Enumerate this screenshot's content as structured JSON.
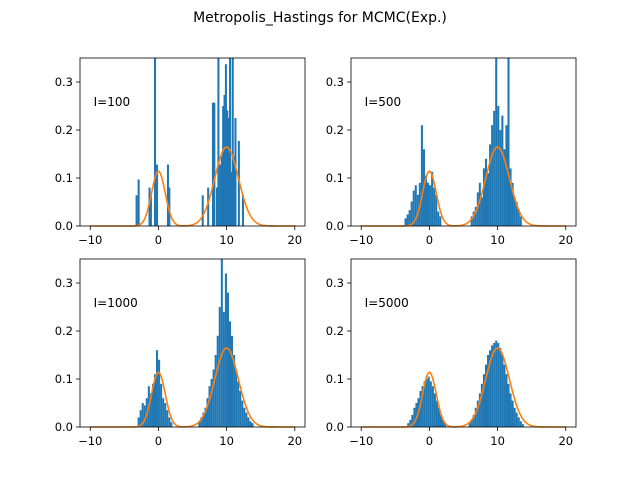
{
  "chart_data": {
    "suptitle": "Metropolis_Hastings for MCMC(Exp.)",
    "colors": {
      "hist": "#1f77b4",
      "pdf": "#ff7f0e"
    },
    "density": {
      "type": "line",
      "formula": "2/7*N(0,1) + 5/7*N(10,3)",
      "components": [
        {
          "weight": 0.2857,
          "mean": 0,
          "variance": 1
        },
        {
          "weight": 0.7143,
          "mean": 10,
          "variance": 3
        }
      ],
      "x_range": [
        -10,
        20
      ]
    },
    "panels": [
      {
        "type": "bar",
        "annotation": "I=100",
        "xlim": [
          -11.5,
          21.5
        ],
        "ylim": [
          0,
          0.35
        ],
        "xticks": [
          "−10",
          "0",
          "10",
          "20"
        ],
        "yticks": [
          "0.0",
          "0.1",
          "0.2",
          "0.3"
        ],
        "bars": [
          {
            "x": -3.2,
            "y": 0.064
          },
          {
            "x": -2.9,
            "y": 0.097
          },
          {
            "x": -1.3,
            "y": 0.08
          },
          {
            "x": -1.1,
            "y": 0.064
          },
          {
            "x": -0.5,
            "y": 0.35
          },
          {
            "x": -0.2,
            "y": 0.128
          },
          {
            "x": 1.4,
            "y": 0.128
          },
          {
            "x": 1.6,
            "y": 0.08
          },
          {
            "x": 6.5,
            "y": 0.064
          },
          {
            "x": 7.3,
            "y": 0.08
          },
          {
            "x": 8.0,
            "y": 0.257
          },
          {
            "x": 8.2,
            "y": 0.257
          },
          {
            "x": 8.6,
            "y": 0.08
          },
          {
            "x": 8.8,
            "y": 0.35
          },
          {
            "x": 9.1,
            "y": 0.128
          },
          {
            "x": 9.3,
            "y": 0.145
          },
          {
            "x": 9.5,
            "y": 0.25
          },
          {
            "x": 9.7,
            "y": 0.273
          },
          {
            "x": 9.9,
            "y": 0.337
          },
          {
            "x": 10.1,
            "y": 0.241
          },
          {
            "x": 10.3,
            "y": 0.225
          },
          {
            "x": 10.5,
            "y": 0.35
          },
          {
            "x": 10.7,
            "y": 0.113
          },
          {
            "x": 10.9,
            "y": 0.35
          },
          {
            "x": 11.1,
            "y": 0.145
          },
          {
            "x": 11.3,
            "y": 0.225
          },
          {
            "x": 11.8,
            "y": 0.177
          },
          {
            "x": 12.4,
            "y": 0.064
          }
        ]
      },
      {
        "type": "bar",
        "annotation": "I=500",
        "xlim": [
          -11.5,
          21.5
        ],
        "ylim": [
          0,
          0.35
        ],
        "xticks": [
          "−10",
          "0",
          "10",
          "20"
        ],
        "yticks": [
          "0.0",
          "0.1",
          "0.2",
          "0.3"
        ],
        "bars": [
          {
            "x": -3.5,
            "y": 0.016
          },
          {
            "x": -3.2,
            "y": 0.024
          },
          {
            "x": -2.9,
            "y": 0.033
          },
          {
            "x": -2.6,
            "y": 0.051
          },
          {
            "x": -2.3,
            "y": 0.074
          },
          {
            "x": -2.0,
            "y": 0.085
          },
          {
            "x": -1.7,
            "y": 0.065
          },
          {
            "x": -1.4,
            "y": 0.09
          },
          {
            "x": -1.1,
            "y": 0.21
          },
          {
            "x": -0.8,
            "y": 0.16
          },
          {
            "x": -0.5,
            "y": 0.105
          },
          {
            "x": -0.2,
            "y": 0.09
          },
          {
            "x": 0.1,
            "y": 0.085
          },
          {
            "x": 0.4,
            "y": 0.113
          },
          {
            "x": 0.7,
            "y": 0.08
          },
          {
            "x": 1.0,
            "y": 0.065
          },
          {
            "x": 1.3,
            "y": 0.03
          },
          {
            "x": 1.6,
            "y": 0.02
          },
          {
            "x": 6.2,
            "y": 0.02
          },
          {
            "x": 6.5,
            "y": 0.03
          },
          {
            "x": 6.8,
            "y": 0.04
          },
          {
            "x": 7.1,
            "y": 0.07
          },
          {
            "x": 7.4,
            "y": 0.09
          },
          {
            "x": 7.7,
            "y": 0.06
          },
          {
            "x": 8.0,
            "y": 0.12
          },
          {
            "x": 8.3,
            "y": 0.14
          },
          {
            "x": 8.6,
            "y": 0.11
          },
          {
            "x": 8.9,
            "y": 0.17
          },
          {
            "x": 9.2,
            "y": 0.21
          },
          {
            "x": 9.5,
            "y": 0.24
          },
          {
            "x": 9.8,
            "y": 0.35
          },
          {
            "x": 10.1,
            "y": 0.25
          },
          {
            "x": 10.4,
            "y": 0.2
          },
          {
            "x": 10.7,
            "y": 0.23
          },
          {
            "x": 11.0,
            "y": 0.16
          },
          {
            "x": 11.3,
            "y": 0.21
          },
          {
            "x": 11.6,
            "y": 0.35
          },
          {
            "x": 11.9,
            "y": 0.12
          },
          {
            "x": 12.2,
            "y": 0.09
          },
          {
            "x": 12.5,
            "y": 0.06
          },
          {
            "x": 12.8,
            "y": 0.05
          },
          {
            "x": 13.1,
            "y": 0.035
          },
          {
            "x": 13.4,
            "y": 0.02
          }
        ]
      },
      {
        "type": "bar",
        "annotation": "I=1000",
        "xlim": [
          -11.5,
          21.5
        ],
        "ylim": [
          0,
          0.35
        ],
        "xticks": [
          "−10",
          "0",
          "10",
          "20"
        ],
        "yticks": [
          "0.0",
          "0.1",
          "0.2",
          "0.3"
        ],
        "bars": [
          {
            "x": -2.9,
            "y": 0.02
          },
          {
            "x": -2.6,
            "y": 0.035
          },
          {
            "x": -2.3,
            "y": 0.05
          },
          {
            "x": -2.0,
            "y": 0.045
          },
          {
            "x": -1.7,
            "y": 0.06
          },
          {
            "x": -1.4,
            "y": 0.085
          },
          {
            "x": -1.1,
            "y": 0.07
          },
          {
            "x": -0.8,
            "y": 0.09
          },
          {
            "x": -0.5,
            "y": 0.11
          },
          {
            "x": -0.2,
            "y": 0.16
          },
          {
            "x": 0.1,
            "y": 0.14
          },
          {
            "x": 0.4,
            "y": 0.09
          },
          {
            "x": 0.7,
            "y": 0.06
          },
          {
            "x": 1.0,
            "y": 0.05
          },
          {
            "x": 1.3,
            "y": 0.035
          },
          {
            "x": 1.6,
            "y": 0.02
          },
          {
            "x": 1.9,
            "y": 0.01
          },
          {
            "x": 6.0,
            "y": 0.01
          },
          {
            "x": 6.3,
            "y": 0.02
          },
          {
            "x": 6.6,
            "y": 0.03
          },
          {
            "x": 6.9,
            "y": 0.04
          },
          {
            "x": 7.2,
            "y": 0.06
          },
          {
            "x": 7.5,
            "y": 0.085
          },
          {
            "x": 7.8,
            "y": 0.1
          },
          {
            "x": 8.1,
            "y": 0.12
          },
          {
            "x": 8.4,
            "y": 0.15
          },
          {
            "x": 8.7,
            "y": 0.19
          },
          {
            "x": 9.0,
            "y": 0.25
          },
          {
            "x": 9.3,
            "y": 0.35
          },
          {
            "x": 9.6,
            "y": 0.24
          },
          {
            "x": 9.9,
            "y": 0.32
          },
          {
            "x": 10.2,
            "y": 0.28
          },
          {
            "x": 10.5,
            "y": 0.22
          },
          {
            "x": 10.8,
            "y": 0.19
          },
          {
            "x": 11.1,
            "y": 0.15
          },
          {
            "x": 11.4,
            "y": 0.12
          },
          {
            "x": 11.7,
            "y": 0.095
          },
          {
            "x": 12.0,
            "y": 0.075
          },
          {
            "x": 12.3,
            "y": 0.055
          },
          {
            "x": 12.6,
            "y": 0.04
          },
          {
            "x": 12.9,
            "y": 0.03
          },
          {
            "x": 13.2,
            "y": 0.02
          },
          {
            "x": 13.5,
            "y": 0.012
          },
          {
            "x": 13.8,
            "y": 0.008
          }
        ]
      },
      {
        "type": "bar",
        "annotation": "I=5000",
        "xlim": [
          -11.5,
          21.5
        ],
        "ylim": [
          0,
          0.35
        ],
        "xticks": [
          "−10",
          "0",
          "10",
          "20"
        ],
        "yticks": [
          "0.0",
          "0.1",
          "0.2",
          "0.3"
        ],
        "bars": [
          {
            "x": -3.1,
            "y": 0.008
          },
          {
            "x": -2.8,
            "y": 0.015
          },
          {
            "x": -2.5,
            "y": 0.025
          },
          {
            "x": -2.2,
            "y": 0.04
          },
          {
            "x": -1.9,
            "y": 0.05
          },
          {
            "x": -1.6,
            "y": 0.06
          },
          {
            "x": -1.3,
            "y": 0.075
          },
          {
            "x": -1.0,
            "y": 0.085
          },
          {
            "x": -0.7,
            "y": 0.095
          },
          {
            "x": -0.4,
            "y": 0.1
          },
          {
            "x": -0.1,
            "y": 0.105
          },
          {
            "x": 0.2,
            "y": 0.095
          },
          {
            "x": 0.5,
            "y": 0.085
          },
          {
            "x": 0.8,
            "y": 0.07
          },
          {
            "x": 1.1,
            "y": 0.055
          },
          {
            "x": 1.4,
            "y": 0.04
          },
          {
            "x": 1.7,
            "y": 0.025
          },
          {
            "x": 2.0,
            "y": 0.015
          },
          {
            "x": 2.3,
            "y": 0.008
          },
          {
            "x": 5.9,
            "y": 0.008
          },
          {
            "x": 6.2,
            "y": 0.015
          },
          {
            "x": 6.5,
            "y": 0.025
          },
          {
            "x": 6.8,
            "y": 0.04
          },
          {
            "x": 7.1,
            "y": 0.055
          },
          {
            "x": 7.4,
            "y": 0.07
          },
          {
            "x": 7.7,
            "y": 0.09
          },
          {
            "x": 8.0,
            "y": 0.11
          },
          {
            "x": 8.3,
            "y": 0.13
          },
          {
            "x": 8.6,
            "y": 0.15
          },
          {
            "x": 8.9,
            "y": 0.16
          },
          {
            "x": 9.2,
            "y": 0.17
          },
          {
            "x": 9.5,
            "y": 0.175
          },
          {
            "x": 9.8,
            "y": 0.18
          },
          {
            "x": 10.1,
            "y": 0.175
          },
          {
            "x": 10.4,
            "y": 0.165
          },
          {
            "x": 10.7,
            "y": 0.15
          },
          {
            "x": 11.0,
            "y": 0.13
          },
          {
            "x": 11.3,
            "y": 0.11
          },
          {
            "x": 11.6,
            "y": 0.09
          },
          {
            "x": 11.9,
            "y": 0.07
          },
          {
            "x": 12.2,
            "y": 0.055
          },
          {
            "x": 12.5,
            "y": 0.04
          },
          {
            "x": 12.8,
            "y": 0.03
          },
          {
            "x": 13.1,
            "y": 0.02
          },
          {
            "x": 13.4,
            "y": 0.012
          },
          {
            "x": 13.7,
            "y": 0.006
          }
        ]
      }
    ]
  }
}
